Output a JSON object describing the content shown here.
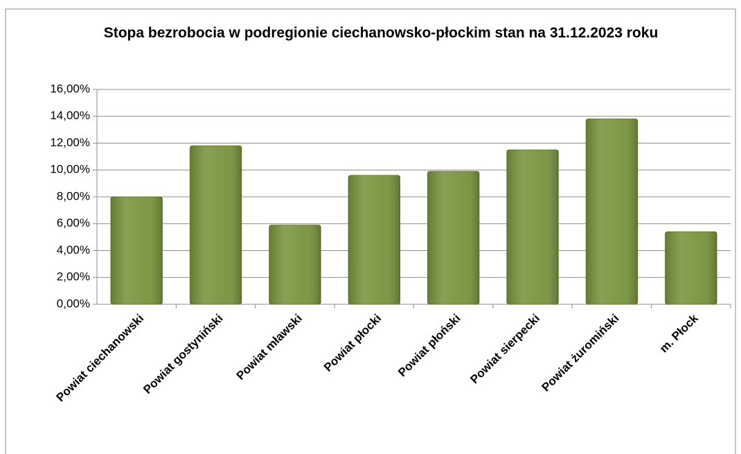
{
  "chart_data": {
    "type": "bar",
    "title": "Stopa bezrobocia w podregionie ciechanowsko-płockim stan na 31.12.2023 roku",
    "categories": [
      "Powiat ciechanowski",
      "Powiat gostyniński",
      "Powiat mławski",
      "Powiat płocki",
      "Powiat płoński",
      "Powiat sierpecki",
      "Powiat żuromiński",
      "m. Płock"
    ],
    "values": [
      8.0,
      11.8,
      5.9,
      9.6,
      9.9,
      11.5,
      13.8,
      5.4
    ],
    "color": "#77933c",
    "ylim": [
      0,
      16
    ],
    "yticks": [
      {
        "value": 0,
        "label": "0,00%"
      },
      {
        "value": 2,
        "label": "2,00%"
      },
      {
        "value": 4,
        "label": "4,00%"
      },
      {
        "value": 6,
        "label": "6,00%"
      },
      {
        "value": 8,
        "label": "8,00%"
      },
      {
        "value": 10,
        "label": "10,00%"
      },
      {
        "value": 12,
        "label": "12,00%"
      },
      {
        "value": 14,
        "label": "14,00%"
      },
      {
        "value": 16,
        "label": "16,00%"
      }
    ],
    "grid": true
  }
}
